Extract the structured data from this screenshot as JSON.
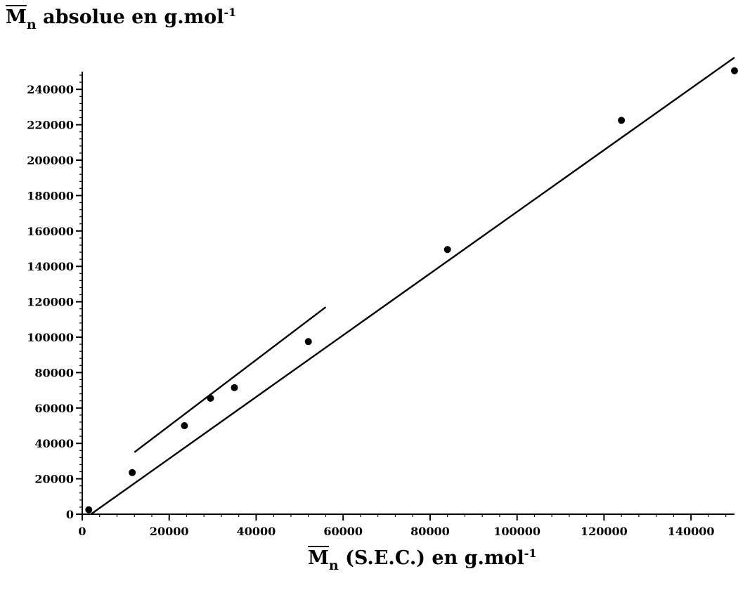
{
  "chart_data": {
    "type": "scatter",
    "title": "",
    "ylabel": {
      "symbol": "M",
      "subscript": "n",
      "text": "absolue en g.mol",
      "superscript": "-1"
    },
    "xlabel": {
      "symbol": "M",
      "subscript": "n",
      "text": "(S.E.C.) en g.mol",
      "superscript": "-1"
    },
    "xlim": [
      0,
      150000
    ],
    "ylim": [
      0,
      250000
    ],
    "x_ticks": [
      "0",
      "20000",
      "40000",
      "60000",
      "80000",
      "100000",
      "120000",
      "140000"
    ],
    "x_tick_values": [
      0,
      20000,
      40000,
      60000,
      80000,
      100000,
      120000,
      140000
    ],
    "y_ticks": [
      "0",
      "20000",
      "40000",
      "60000",
      "80000",
      "100000",
      "120000",
      "140000",
      "160000",
      "180000",
      "200000",
      "220000",
      "240000"
    ],
    "y_tick_values": [
      0,
      20000,
      40000,
      60000,
      80000,
      100000,
      120000,
      140000,
      160000,
      180000,
      200000,
      220000,
      240000
    ],
    "grid": false,
    "points": [
      {
        "x": 1500,
        "y": 2500
      },
      {
        "x": 11500,
        "y": 23500
      },
      {
        "x": 23500,
        "y": 50000
      },
      {
        "x": 29500,
        "y": 65500
      },
      {
        "x": 35000,
        "y": 71500
      },
      {
        "x": 52000,
        "y": 97500
      },
      {
        "x": 84000,
        "y": 149500
      },
      {
        "x": 124000,
        "y": 222500
      },
      {
        "x": 150000,
        "y": 250500
      }
    ],
    "fit_lines": [
      {
        "x1": 2000,
        "y1": 0,
        "x2": 150000,
        "y2": 258000
      },
      {
        "x1": 12000,
        "y1": 35000,
        "x2": 56000,
        "y2": 117000
      }
    ]
  }
}
